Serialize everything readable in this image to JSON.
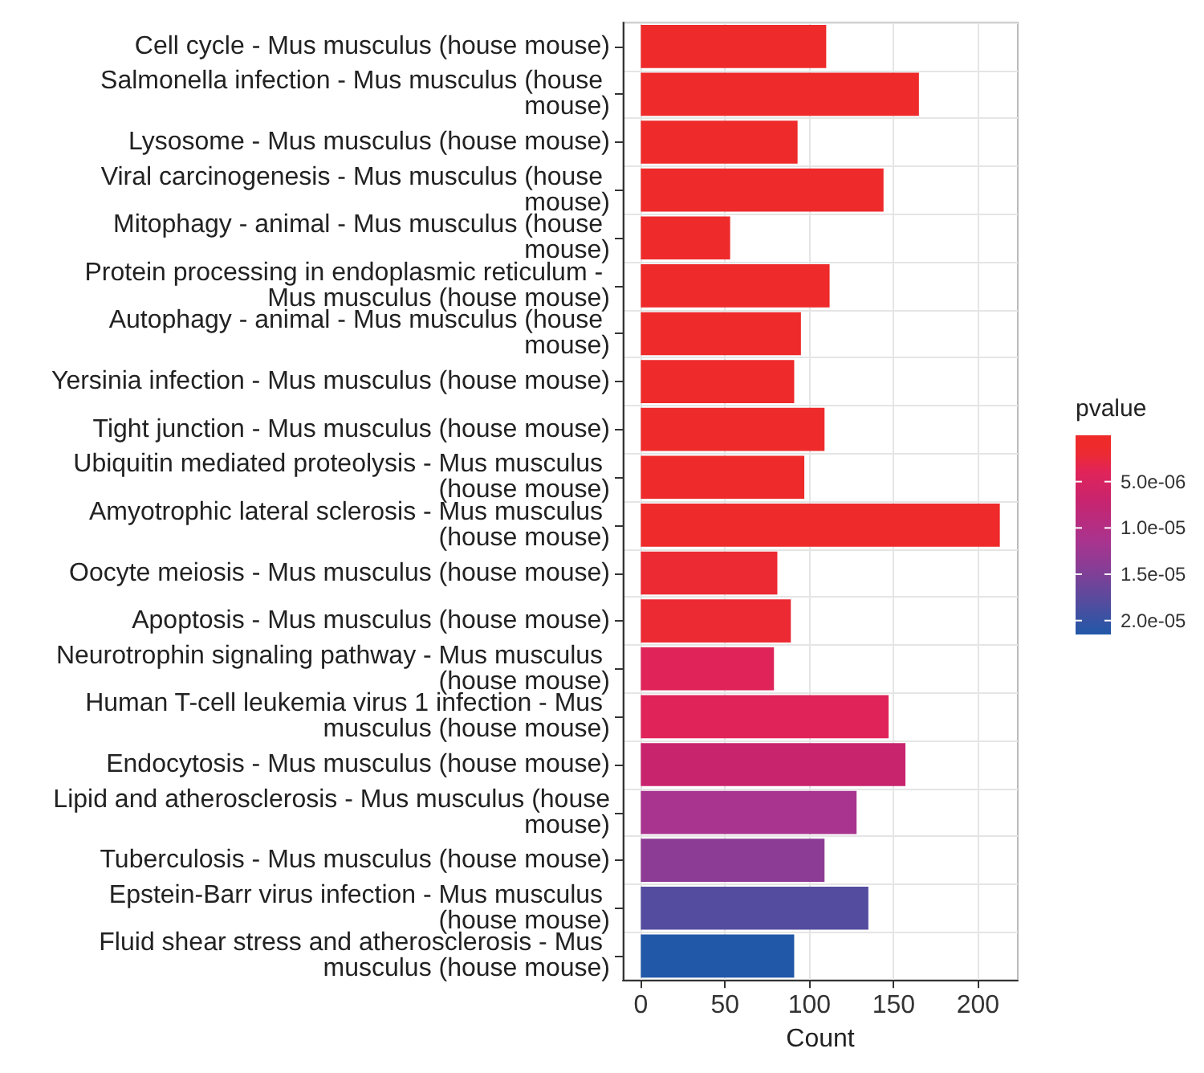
{
  "chart_data": {
    "type": "bar",
    "orientation": "horizontal",
    "xlabel": "Count",
    "clabel": "pvalue",
    "categories": [
      "Cell cycle - Mus musculus (house mouse)",
      "Salmonella infection - Mus musculus (house mouse)",
      "Lysosome - Mus musculus (house mouse)",
      "Viral carcinogenesis - Mus musculus (house mouse)",
      "Mitophagy - animal - Mus musculus (house mouse)",
      "Protein processing in endoplasmic reticulum - Mus musculus (house mouse)",
      "Autophagy - animal - Mus musculus (house mouse)",
      "Yersinia infection - Mus musculus (house mouse)",
      "Tight junction - Mus musculus (house mouse)",
      "Ubiquitin mediated proteolysis - Mus musculus (house mouse)",
      "Amyotrophic lateral sclerosis - Mus musculus (house mouse)",
      "Oocyte meiosis - Mus musculus (house mouse)",
      "Apoptosis - Mus musculus (house mouse)",
      "Neurotrophin signaling pathway - Mus musculus (house mouse)",
      "Human T-cell leukemia virus 1 infection - Mus musculus (house mouse)",
      "Endocytosis - Mus musculus (house mouse)",
      "Lipid and atherosclerosis - Mus musculus (house mouse)",
      "Tuberculosis - Mus musculus (house mouse)",
      "Epstein-Barr virus infection - Mus musculus (house mouse)",
      "Fluid shear stress and atherosclerosis - Mus musculus (house mouse)"
    ],
    "values": [
      110,
      165,
      93,
      144,
      53,
      112,
      95,
      91,
      109,
      97,
      213,
      81,
      89,
      79,
      147,
      157,
      128,
      109,
      135,
      91
    ],
    "cvalues": [
      1e-06,
      1e-06,
      1e-06,
      1e-06,
      1e-06,
      1e-06,
      1e-06,
      1e-06,
      1e-06,
      1e-06,
      1e-06,
      2e-06,
      2e-06,
      4e-06,
      4e-06,
      7e-06,
      1.15e-05,
      1.4e-05,
      1.8e-05,
      2.15e-05
    ],
    "colors": [
      "#ee2a2a",
      "#ee2a2a",
      "#ee2a2a",
      "#ee2a2a",
      "#ee2a2a",
      "#ee2a2a",
      "#ee2a2a",
      "#ee2a2a",
      "#ee2a2a",
      "#ee2a2a",
      "#ee2a2a",
      "#ec2a33",
      "#ec2a33",
      "#e0245a",
      "#e0245a",
      "#c8246e",
      "#a8348f",
      "#8c3c94",
      "#544c9e",
      "#2158a8"
    ],
    "xlim": [
      -10.65,
      223.65
    ],
    "xticks": [
      0,
      50,
      100,
      150,
      200
    ],
    "clim": [
      0,
      2.15e-05
    ],
    "cticks": [
      {
        "value": 5e-06,
        "label": "5.0e-06"
      },
      {
        "value": 1e-05,
        "label": "1.0e-05"
      },
      {
        "value": 1.5e-05,
        "label": "1.5e-05"
      },
      {
        "value": 2e-05,
        "label": "2.0e-05"
      }
    ],
    "grid": true
  }
}
